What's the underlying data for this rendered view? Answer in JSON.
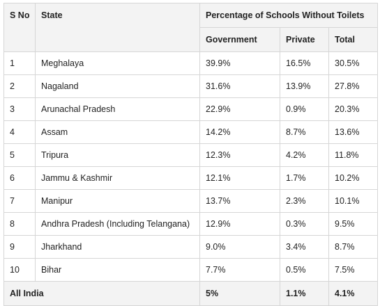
{
  "table": {
    "headers": {
      "sno": "S No",
      "state": "State",
      "group": "Percentage of Schools Without Toilets",
      "government": "Government",
      "private": "Private",
      "total": "Total"
    },
    "rows": [
      {
        "sno": "1",
        "state": "Meghalaya",
        "government": "39.9%",
        "private": "16.5%",
        "total": "30.5%"
      },
      {
        "sno": "2",
        "state": "Nagaland",
        "government": "31.6%",
        "private": "13.9%",
        "total": "27.8%"
      },
      {
        "sno": "3",
        "state": "Arunachal Pradesh",
        "government": "22.9%",
        "private": "0.9%",
        "total": "20.3%"
      },
      {
        "sno": "4",
        "state": "Assam",
        "government": "14.2%",
        "private": "8.7%",
        "total": "13.6%"
      },
      {
        "sno": "5",
        "state": "Tripura",
        "government": "12.3%",
        "private": "4.2%",
        "total": "11.8%"
      },
      {
        "sno": "6",
        "state": "Jammu & Kashmir",
        "government": "12.1%",
        "private": "1.7%",
        "total": "10.2%"
      },
      {
        "sno": "7",
        "state": "Manipur",
        "government": "13.7%",
        "private": "2.3%",
        "total": "10.1%"
      },
      {
        "sno": "8",
        "state": "Andhra Pradesh (Including Telangana)",
        "government": "12.9%",
        "private": "0.3%",
        "total": "9.5%"
      },
      {
        "sno": "9",
        "state": "Jharkhand",
        "government": "9.0%",
        "private": "3.4%",
        "total": "8.7%"
      },
      {
        "sno": "10",
        "state": "Bihar",
        "government": "7.7%",
        "private": "0.5%",
        "total": "7.5%"
      }
    ],
    "footer": {
      "label": "All India",
      "government": "5%",
      "private": "1.1%",
      "total": "4.1%"
    }
  },
  "colors": {
    "header_bg": "#f3f3f3",
    "border": "#d6d6d6",
    "text": "#222222"
  }
}
